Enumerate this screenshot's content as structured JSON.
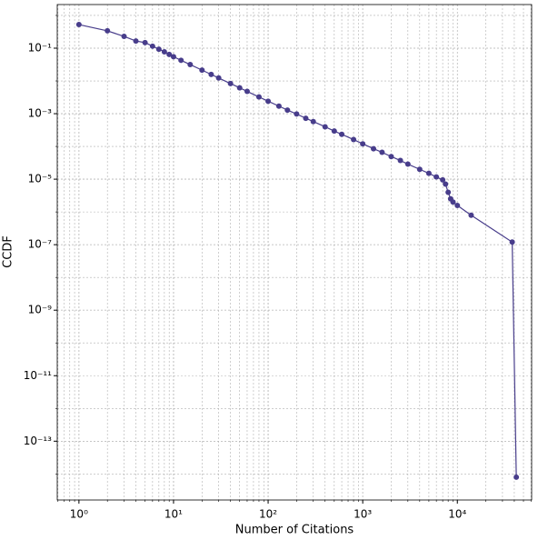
{
  "chart_data": {
    "type": "line",
    "xlabel": "Number of Citations",
    "ylabel": "CCDF",
    "log_x": true,
    "log_y": true,
    "grid": true,
    "minor_grid": true,
    "marker": true,
    "xlim": [
      0.59,
      61000
    ],
    "ylim": [
      1.6e-15,
      2.15
    ],
    "xticks": [
      {
        "value": 1,
        "label": "10⁰"
      },
      {
        "value": 10,
        "label": "10¹"
      },
      {
        "value": 100,
        "label": "10²"
      },
      {
        "value": 1000,
        "label": "10³"
      },
      {
        "value": 10000,
        "label": "10⁴"
      }
    ],
    "yticks": [
      {
        "value": 0.1,
        "label": "10⁻¹"
      },
      {
        "value": 0.001,
        "label": "10⁻³"
      },
      {
        "value": 1e-05,
        "label": "10⁻⁵"
      },
      {
        "value": 1e-07,
        "label": "10⁻⁷"
      },
      {
        "value": 1e-09,
        "label": "10⁻⁹"
      },
      {
        "value": 1e-11,
        "label": "10⁻¹¹"
      },
      {
        "value": 1e-13,
        "label": "10⁻¹³"
      }
    ],
    "x": [
      1,
      2,
      3,
      4,
      5,
      6,
      7,
      8,
      9,
      10,
      12,
      15,
      20,
      25,
      30,
      40,
      50,
      60,
      80,
      100,
      130,
      160,
      200,
      250,
      300,
      400,
      500,
      600,
      800,
      1000,
      1300,
      1600,
      2000,
      2500,
      3000,
      4000,
      5000,
      6000,
      7000,
      7500,
      8000,
      8500,
      9000,
      10000,
      14000,
      38000,
      42000
    ],
    "series": [
      {
        "name": "CCDF",
        "color": "#483d8b",
        "values": [
          0.525,
          0.339,
          0.229,
          0.166,
          0.148,
          0.115,
          0.0933,
          0.0776,
          0.0646,
          0.055,
          0.0427,
          0.0316,
          0.0214,
          0.0158,
          0.0123,
          0.00832,
          0.00617,
          0.00479,
          0.00324,
          0.0024,
          0.0017,
          0.00129,
          0.000977,
          0.000724,
          0.000575,
          0.000398,
          0.000295,
          0.000234,
          0.000162,
          0.00012,
          8.51e-05,
          6.61e-05,
          4.9e-05,
          3.72e-05,
          2.88e-05,
          2e-05,
          1.51e-05,
          1.17e-05,
          9.55e-06,
          7.08e-06,
          3.98e-06,
          2.51e-06,
          2e-06,
          1.58e-06,
          7.94e-07,
          1.2e-07,
          7.94e-15
        ]
      }
    ]
  }
}
